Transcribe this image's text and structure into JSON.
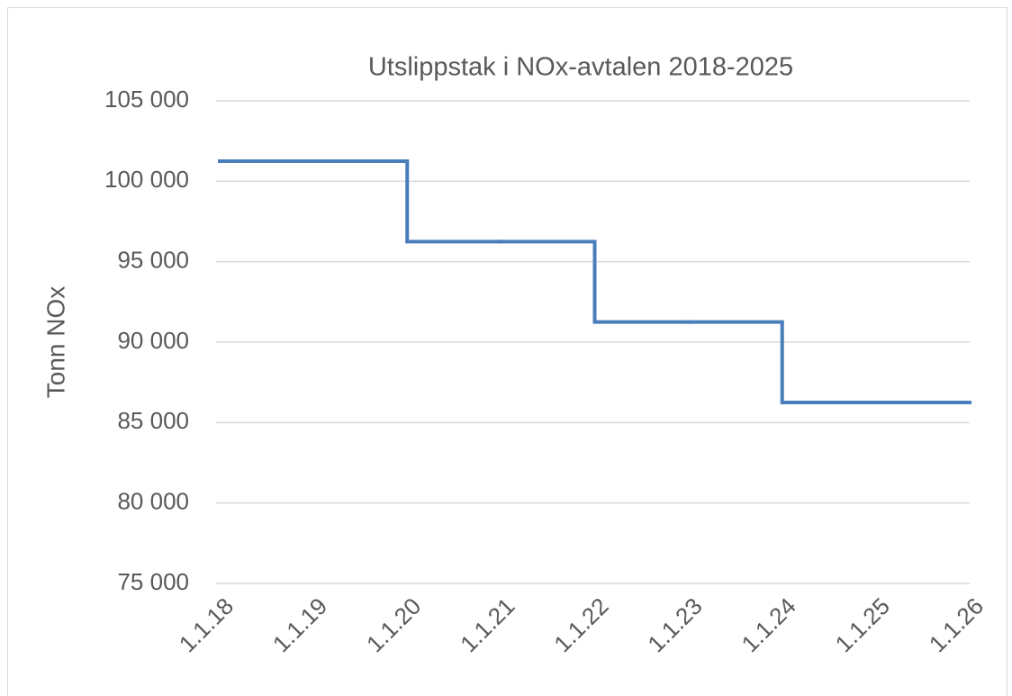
{
  "chart_data": {
    "type": "line",
    "step": "post",
    "title": "Utslippstak i NOx-avtalen 2018-2025",
    "y_label": "Tonn NOx",
    "categories": [
      "1.1.18",
      "1.1.19",
      "1.1.20",
      "1.1.21",
      "1.1.22",
      "1.1.23",
      "1.1.24",
      "1.1.25",
      "1.1.26"
    ],
    "series": [
      {
        "name": "Utslippstak",
        "color": "#4a7ebb",
        "values": [
          101250,
          101250,
          96250,
          96250,
          91250,
          91250,
          86250,
          86250,
          86250
        ]
      }
    ],
    "ylim": [
      75000,
      105000
    ],
    "yticks": [
      {
        "value": 75000,
        "label": "75 000"
      },
      {
        "value": 80000,
        "label": "80 000"
      },
      {
        "value": 85000,
        "label": "85 000"
      },
      {
        "value": 90000,
        "label": "90 000"
      },
      {
        "value": 95000,
        "label": "95 000"
      },
      {
        "value": 100000,
        "label": "100 000"
      },
      {
        "value": 105000,
        "label": "105 000"
      }
    ],
    "grid": true
  }
}
